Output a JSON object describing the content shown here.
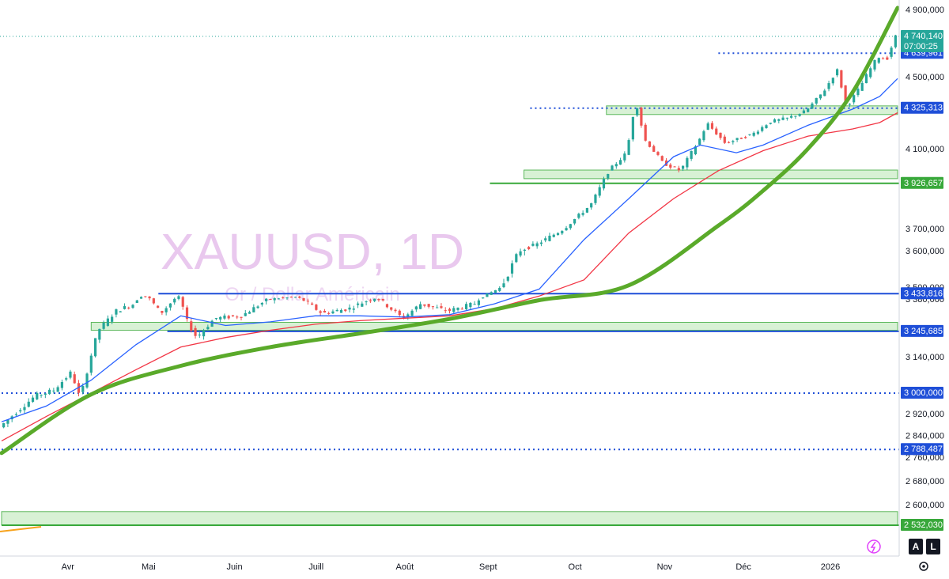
{
  "chart_data": {
    "type": "candlestick",
    "watermark": {
      "title": "XAUUSD, 1D",
      "subtitle": "Or / Dollar Américain"
    },
    "x_labels": [
      "Avr",
      "Mai",
      "Juin",
      "Juill",
      "Août",
      "Sept",
      "Oct",
      "Nov",
      "Déc",
      "2026"
    ],
    "y_ticks": [
      {
        "v": 4900,
        "t": "4 900,000"
      },
      {
        "v": 4500,
        "t": "4 500,000"
      },
      {
        "v": 4100,
        "t": "4 100,000"
      },
      {
        "v": 3700,
        "t": "3 700,000"
      },
      {
        "v": 3600,
        "t": "3 600,000"
      },
      {
        "v": 3500,
        "t": "3 500,000"
      },
      {
        "v": 3380,
        "t": "3 380,000"
      },
      {
        "v": 3140,
        "t": "3 140,000"
      },
      {
        "v": 2920,
        "t": "2 920,000"
      },
      {
        "v": 2840,
        "t": "2 840,000"
      },
      {
        "v": 2760,
        "t": "2 760,000"
      },
      {
        "v": 2680,
        "t": "2 680,000"
      },
      {
        "v": 2600,
        "t": "2 600,000"
      }
    ],
    "price": {
      "value": 4740.14,
      "label": "4 740,140",
      "countdown": "07:00:25",
      "color": "#26a69a"
    },
    "levels": [
      {
        "value": 4639.961,
        "label": "4 639,961",
        "color": "#1f4fd8",
        "style": "dotted",
        "from": 0.8
      },
      {
        "value": 4325.313,
        "label": "4 325,313",
        "color": "#1f4fd8",
        "style": "dotted",
        "from": 0.59
      },
      {
        "value": 3926.657,
        "label": "3 926,657",
        "color": "#38a83a",
        "style": "solid",
        "from": 0.545
      },
      {
        "value": 3433.816,
        "label": "3 433,816",
        "color": "#1f4fd8",
        "style": "solid",
        "from": 0.175
      },
      {
        "value": 3245.685,
        "label": "3 245,685",
        "color": "#1f4fd8",
        "style": "solid",
        "from": 0.185
      },
      {
        "value": 3000.0,
        "label": "3 000,000",
        "color": "#1f4fd8",
        "style": "dotted",
        "from": 0.0
      },
      {
        "value": 2788.487,
        "label": "2 788,487",
        "color": "#1f4fd8",
        "style": "dotted",
        "from": 0.0
      },
      {
        "value": 2532.03,
        "label": "2 532,030",
        "color": "#38a83a",
        "style": "solid",
        "from": 0.0
      }
    ],
    "zones": [
      {
        "top": 4338,
        "bottom": 4290,
        "from": 0.675,
        "to": 1.0
      },
      {
        "top": 3993,
        "bottom": 3950,
        "from": 0.583,
        "to": 1.0
      },
      {
        "top": 3283,
        "bottom": 3250,
        "from": 0.1,
        "to": 1.0
      },
      {
        "top": 2577,
        "bottom": 2533,
        "from": 0.0,
        "to": 1.0
      }
    ],
    "curve": [
      [
        0.0,
        2775
      ],
      [
        0.1,
        2995
      ],
      [
        0.2,
        3105
      ],
      [
        0.3,
        3180
      ],
      [
        0.4,
        3237
      ],
      [
        0.5,
        3297
      ],
      [
        0.6,
        3375
      ],
      [
        0.7,
        3505
      ],
      [
        0.8,
        3715
      ],
      [
        0.85,
        3890
      ],
      [
        0.9,
        4100
      ],
      [
        0.95,
        4415
      ],
      [
        1.0,
        4910
      ]
    ],
    "ma_fast": [
      [
        0.0,
        2890
      ],
      [
        0.05,
        2950
      ],
      [
        0.1,
        3050
      ],
      [
        0.15,
        3190
      ],
      [
        0.2,
        3310
      ],
      [
        0.25,
        3270
      ],
      [
        0.3,
        3285
      ],
      [
        0.35,
        3310
      ],
      [
        0.4,
        3310
      ],
      [
        0.45,
        3305
      ],
      [
        0.5,
        3315
      ],
      [
        0.55,
        3360
      ],
      [
        0.6,
        3480
      ],
      [
        0.65,
        3650
      ],
      [
        0.7,
        3850
      ],
      [
        0.75,
        4060
      ],
      [
        0.78,
        4120
      ],
      [
        0.82,
        4080
      ],
      [
        0.85,
        4120
      ],
      [
        0.9,
        4230
      ],
      [
        0.95,
        4320
      ],
      [
        0.98,
        4390
      ],
      [
        1.0,
        4490
      ]
    ],
    "ma_slow": [
      [
        0.0,
        2820
      ],
      [
        0.05,
        2910
      ],
      [
        0.1,
        3000
      ],
      [
        0.15,
        3090
      ],
      [
        0.2,
        3180
      ],
      [
        0.25,
        3220
      ],
      [
        0.3,
        3250
      ],
      [
        0.35,
        3275
      ],
      [
        0.4,
        3290
      ],
      [
        0.45,
        3300
      ],
      [
        0.5,
        3310
      ],
      [
        0.55,
        3340
      ],
      [
        0.6,
        3410
      ],
      [
        0.65,
        3520
      ],
      [
        0.7,
        3680
      ],
      [
        0.75,
        3850
      ],
      [
        0.8,
        3990
      ],
      [
        0.85,
        4090
      ],
      [
        0.9,
        4170
      ],
      [
        0.95,
        4210
      ],
      [
        0.98,
        4245
      ],
      [
        1.0,
        4300
      ]
    ],
    "candles_path": [
      [
        0.0,
        2870
      ],
      [
        0.02,
        2930
      ],
      [
        0.04,
        2990
      ],
      [
        0.06,
        3010
      ],
      [
        0.08,
        3080
      ],
      [
        0.09,
        2980
      ],
      [
        0.11,
        3250
      ],
      [
        0.13,
        3330
      ],
      [
        0.15,
        3360
      ],
      [
        0.16,
        3420
      ],
      [
        0.18,
        3320
      ],
      [
        0.2,
        3400
      ],
      [
        0.21,
        3280
      ],
      [
        0.22,
        3220
      ],
      [
        0.24,
        3300
      ],
      [
        0.27,
        3310
      ],
      [
        0.3,
        3380
      ],
      [
        0.33,
        3400
      ],
      [
        0.36,
        3320
      ],
      [
        0.39,
        3340
      ],
      [
        0.42,
        3390
      ],
      [
        0.45,
        3300
      ],
      [
        0.47,
        3360
      ],
      [
        0.5,
        3330
      ],
      [
        0.53,
        3360
      ],
      [
        0.56,
        3500
      ],
      [
        0.58,
        3600
      ],
      [
        0.6,
        3630
      ],
      [
        0.63,
        3700
      ],
      [
        0.66,
        3820
      ],
      [
        0.68,
        3990
      ],
      [
        0.7,
        4080
      ],
      [
        0.71,
        4370
      ],
      [
        0.72,
        4150
      ],
      [
        0.74,
        4030
      ],
      [
        0.76,
        3990
      ],
      [
        0.78,
        4140
      ],
      [
        0.79,
        4240
      ],
      [
        0.81,
        4130
      ],
      [
        0.84,
        4180
      ],
      [
        0.86,
        4250
      ],
      [
        0.88,
        4270
      ],
      [
        0.9,
        4310
      ],
      [
        0.92,
        4420
      ],
      [
        0.935,
        4540
      ],
      [
        0.945,
        4330
      ],
      [
        0.96,
        4440
      ],
      [
        0.98,
        4620
      ],
      [
        0.99,
        4600
      ],
      [
        1.0,
        4740
      ]
    ]
  },
  "controls": {
    "auto": "A",
    "log": "L",
    "settings_icon": "gear-icon",
    "flash_icon": "bolt-icon"
  },
  "colors": {
    "up": "#26a69a",
    "down": "#ef5350",
    "curve": "#5aaa2a",
    "ma_fast": "#2962ff",
    "ma_slow": "#f23645",
    "zone": "#d8f1d5",
    "zone_border": "#5cb85c"
  }
}
